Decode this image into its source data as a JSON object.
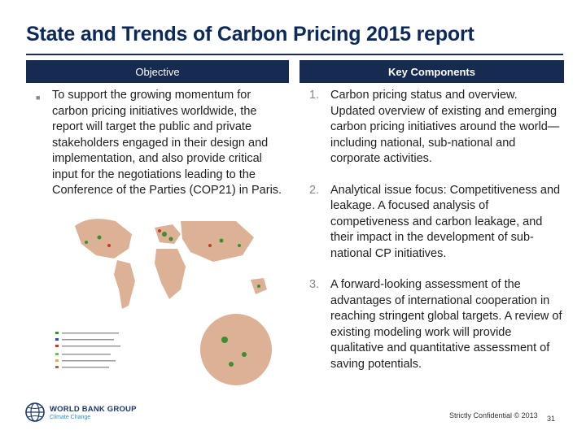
{
  "slide": {
    "title": "State and Trends of Carbon Pricing 2015 report",
    "headers": {
      "objective": "Objective",
      "components": "Key Components"
    },
    "objective_text": "To support the growing momentum for carbon pricing initiatives worldwide, the report will target the public and private stakeholders engaged in their design and implementation, and also provide critical input for the negotiations leading to the Conference of the Parties (COP21) in Paris.",
    "components": [
      {
        "num": "1.",
        "text": "Carbon pricing status and overview. Updated overview of existing and emerging carbon pricing initiatives around the world—including national, sub-national and corporate activities."
      },
      {
        "num": "2.",
        "text": "Analytical issue focus: Competitiveness and leakage. A focused analysis of competiveness and carbon leakage, and their impact in the development of sub-national CP initiatives."
      },
      {
        "num": "3.",
        "text": "A forward-looking assessment of the advantages of international cooperation in reaching stringent global targets. A review of existing modeling work will provide qualitative and quantitative assessment of saving potentials."
      }
    ],
    "footer": {
      "logo_main": "WORLD BANK GROUP",
      "logo_sub": "Climate Change",
      "confidential": "Strictly Confidential © 2013",
      "page": "31"
    }
  },
  "colors": {
    "title": "#0b2a5b",
    "header_bg": "#172a4f",
    "map_land": "#d9a98a",
    "map_green": "#3a8f2e"
  },
  "icons": {
    "bullet": "square-bullet-icon",
    "logo": "globe-icon"
  }
}
